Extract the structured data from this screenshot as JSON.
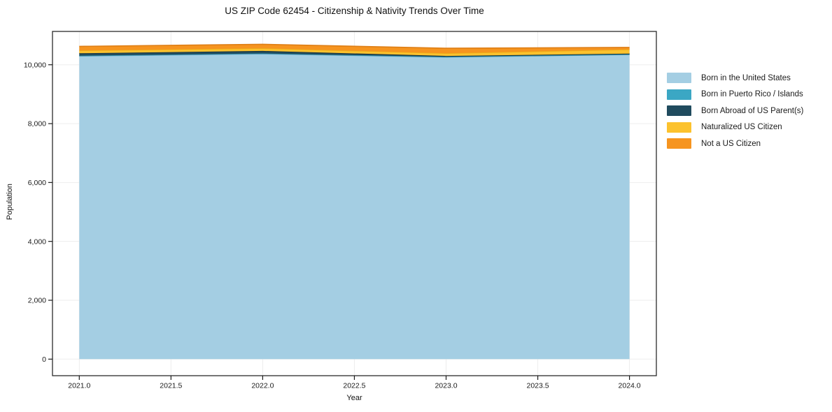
{
  "chart_data": {
    "type": "area",
    "stacked": true,
    "title": "US ZIP Code 62454 - Citizenship & Nativity Trends Over Time",
    "xlabel": "Year",
    "ylabel": "Population",
    "x": [
      2021,
      2022,
      2023,
      2024
    ],
    "series": [
      {
        "name": "Born in the United States",
        "color": "#A4CEE3",
        "edge_color": "#6FB0D0",
        "values": [
          10295,
          10370,
          10260,
          10345
        ]
      },
      {
        "name": "Born in Puerto Rico / Islands",
        "color": "#3BA7C4",
        "edge_color": "#2F8CA6",
        "values": [
          15,
          15,
          10,
          10
        ]
      },
      {
        "name": "Born Abroad of US Parent(s)",
        "color": "#204B5E",
        "edge_color": "#16333F",
        "values": [
          80,
          85,
          30,
          25
        ]
      },
      {
        "name": "Naturalized US Citizen",
        "color": "#FCC22E",
        "edge_color": "#EAAC18",
        "values": [
          95,
          90,
          90,
          140
        ]
      },
      {
        "name": "Not a US Citizen",
        "color": "#F6941F",
        "edge_color": "#DE7E15",
        "values": [
          140,
          135,
          170,
          70
        ]
      }
    ],
    "x_ticks": {
      "values": [
        2021,
        2021.5,
        2022,
        2022.5,
        2023,
        2023.5,
        2024
      ],
      "labels": [
        "2021.0",
        "2021.5",
        "2022.0",
        "2022.5",
        "2023.0",
        "2023.5",
        "2024.0"
      ]
    },
    "y_ticks": {
      "values": [
        0,
        2000,
        4000,
        6000,
        8000,
        10000
      ],
      "labels": [
        "0",
        "2,000",
        "4,000",
        "6,000",
        "8,000",
        "10,000"
      ]
    },
    "xlim": [
      2020.85,
      2024.15
    ],
    "ylim": [
      -570,
      11120
    ],
    "grid": true,
    "legend_position": "outside-right",
    "style": {
      "background": "#ffffff",
      "grid_color": "#ededed",
      "frame_color": "#2b2b2b",
      "tick_color": "#1a1a1a",
      "text_color": "#111111"
    }
  }
}
